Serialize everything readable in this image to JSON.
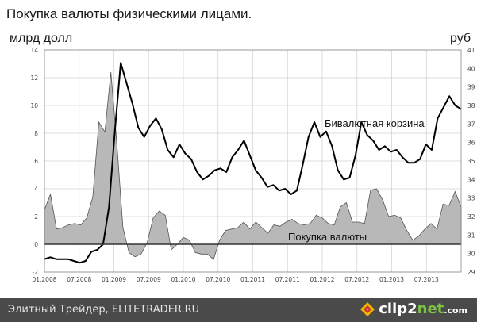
{
  "title": "Покупка валюты физическими лицами.",
  "left_unit": "млрд долл",
  "right_unit": "руб",
  "footer": {
    "text": "Элитный Трейдер, ELITETRADER.RU",
    "brand_main": "clip2",
    "brand_accent": "net",
    "brand_suffix": ".com"
  },
  "chart_data": {
    "type": "line",
    "x_labels": [
      "01.2008",
      "07.2008",
      "01.2009",
      "07.2009",
      "01.2010",
      "07.2010",
      "01.2011",
      "07.2011",
      "01.2012",
      "07.2012",
      "01.2013",
      "07.2013"
    ],
    "y_left": {
      "lim": [
        -2,
        14
      ],
      "ticks": [
        -2,
        0,
        2,
        4,
        6,
        8,
        10,
        12,
        14
      ]
    },
    "y_right": {
      "lim": [
        29,
        41
      ],
      "ticks": [
        29,
        30,
        31,
        32,
        33,
        34,
        35,
        36,
        37,
        38,
        39,
        40,
        41
      ]
    },
    "series": [
      {
        "name": "Покупка валюты",
        "type": "area",
        "axis": "left",
        "color": "#b8b8b8",
        "values": [
          2.5,
          3.6,
          1.1,
          1.2,
          1.4,
          1.5,
          1.4,
          1.9,
          3.4,
          8.8,
          8.1,
          12.4,
          7.2,
          1.2,
          -0.6,
          -0.9,
          -0.7,
          0.1,
          1.9,
          2.4,
          2.1,
          -0.4,
          0.0,
          0.5,
          0.3,
          -0.6,
          -0.7,
          -0.7,
          -1.1,
          0.3,
          1.0,
          1.1,
          1.2,
          1.6,
          1.1,
          1.6,
          1.2,
          0.8,
          1.4,
          1.3,
          1.6,
          1.8,
          1.5,
          1.4,
          1.5,
          2.1,
          1.9,
          1.5,
          1.4,
          2.7,
          3.0,
          1.6,
          1.6,
          1.5,
          3.9,
          4.0,
          3.2,
          2.0,
          2.1,
          1.9,
          1.0,
          0.3,
          0.6,
          1.1,
          1.5,
          1.1,
          2.9,
          2.8,
          3.8,
          2.7
        ]
      },
      {
        "name": "Бивалютная корзина",
        "type": "line",
        "axis": "right",
        "color": "#000000",
        "values": [
          29.7,
          29.8,
          29.7,
          29.7,
          29.7,
          29.6,
          29.5,
          29.6,
          30.1,
          30.2,
          30.5,
          32.5,
          36.6,
          40.3,
          39.2,
          38.1,
          36.8,
          36.3,
          36.9,
          37.3,
          36.7,
          35.6,
          35.2,
          35.9,
          35.4,
          35.1,
          34.4,
          34.0,
          34.2,
          34.5,
          34.6,
          34.4,
          35.2,
          35.6,
          36.1,
          35.3,
          34.5,
          34.1,
          33.6,
          33.7,
          33.4,
          33.5,
          33.2,
          33.4,
          34.8,
          36.3,
          37.1,
          36.3,
          36.6,
          35.8,
          34.5,
          34.0,
          34.1,
          35.3,
          37.1,
          36.4,
          36.1,
          35.6,
          35.8,
          35.5,
          35.6,
          35.2,
          34.9,
          34.9,
          35.1,
          35.9,
          35.6,
          37.3,
          37.9,
          38.5,
          38.0,
          37.8
        ]
      }
    ],
    "zero_line": true
  }
}
